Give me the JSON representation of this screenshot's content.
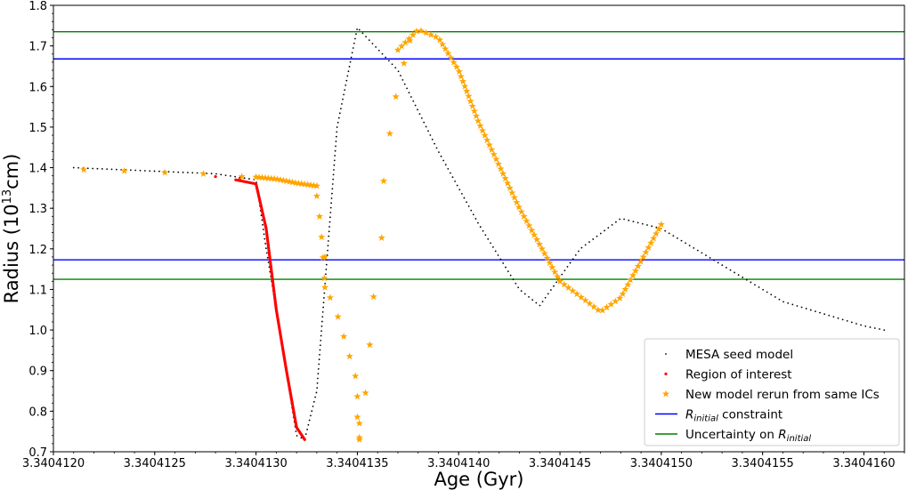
{
  "chart_data": {
    "type": "scatter",
    "xlabel": "Age (Gyr)",
    "ylabel": "Radius (10",
    "ylabel_sup": "13",
    "ylabel_unit": "cm)",
    "xlim": [
      3.340412,
      3.3404162
    ],
    "ylim": [
      0.7,
      1.8
    ],
    "x_ticks": [
      3.340412,
      3.3404125,
      3.340413,
      3.3404135,
      3.340414,
      3.3404145,
      3.340415,
      3.3404155,
      3.340416
    ],
    "x_tick_labels": [
      "3.3404120",
      "3.3404125",
      "3.3404130",
      "3.3404135",
      "3.3404140",
      "3.3404145",
      "3.3404150",
      "3.3404155",
      "3.3404160"
    ],
    "y_ticks": [
      0.7,
      0.8,
      0.9,
      1.0,
      1.1,
      1.2,
      1.3,
      1.4,
      1.5,
      1.6,
      1.7,
      1.8
    ],
    "y_tick_labels": [
      "0.7",
      "0.8",
      "0.9",
      "1.0",
      "1.1",
      "1.2",
      "1.3",
      "1.4",
      "1.5",
      "1.6",
      "1.7",
      "1.8"
    ],
    "series": [
      {
        "name": "MESA seed model",
        "marker": "dot",
        "color": "#000000",
        "curve": [
          [
            3.3404121,
            1.4
          ],
          [
            3.3404128,
            1.385
          ],
          [
            3.340413,
            1.37
          ],
          [
            3.34041305,
            1.2
          ],
          [
            3.3404131,
            1.05
          ],
          [
            3.3404132,
            0.74
          ],
          [
            3.34041324,
            0.73
          ],
          [
            3.3404133,
            0.85
          ],
          [
            3.3404134,
            1.5
          ],
          [
            3.3404135,
            1.745
          ],
          [
            3.3404137,
            1.64
          ],
          [
            3.3404139,
            1.44
          ],
          [
            3.3404141,
            1.26
          ],
          [
            3.3404143,
            1.1
          ],
          [
            3.3404144,
            1.06
          ],
          [
            3.3404146,
            1.2
          ],
          [
            3.3404148,
            1.275
          ],
          [
            3.340415,
            1.25
          ],
          [
            3.3404153,
            1.16
          ],
          [
            3.3404156,
            1.07
          ],
          [
            3.340416,
            1.01
          ],
          [
            3.3404161,
            1.0
          ]
        ],
        "samples": 340
      },
      {
        "name": "Region of interest",
        "marker": "point",
        "color": "#ff0000",
        "isolated": [
          [
            3.3404128,
            1.378
          ],
          [
            3.34041292,
            1.372
          ]
        ],
        "curve": [
          [
            3.3404129,
            1.37
          ],
          [
            3.340413,
            1.36
          ],
          [
            3.34041305,
            1.25
          ],
          [
            3.3404131,
            1.05
          ],
          [
            3.34041315,
            0.9
          ],
          [
            3.3404132,
            0.76
          ],
          [
            3.34041324,
            0.73
          ]
        ],
        "samples": 200
      },
      {
        "name": "New model rerun from same ICs",
        "marker": "star",
        "color": "#ffa500",
        "isolated": [
          [
            3.34041215,
            1.395
          ],
          [
            3.34041235,
            1.392
          ],
          [
            3.34041255,
            1.388
          ],
          [
            3.34041274,
            1.385
          ],
          [
            3.34041293,
            1.378
          ],
          [
            3.34041334,
            1.105
          ],
          [
            3.34041334,
            1.18
          ],
          [
            3.34041351,
            0.73
          ],
          [
            3.34041351,
            0.77
          ],
          [
            3.34041362,
            1.227
          ],
          [
            3.34041363,
            1.367
          ],
          [
            3.34041366,
            1.484
          ],
          [
            3.34041369,
            1.575
          ],
          [
            3.34041373,
            1.657
          ],
          [
            3.34041376,
            1.713
          ]
        ],
        "curve_groups": [
          {
            "curve": [
              [
                3.340413,
                1.377
              ],
              [
                3.3404131,
                1.372
              ],
              [
                3.3404132,
                1.362
              ],
              [
                3.3404133,
                1.355
              ]
            ],
            "samples": 21
          },
          {
            "curve": [
              [
                3.3404133,
                1.33
              ],
              [
                3.34041332,
                1.255
              ],
              [
                3.34041334,
                1.11
              ],
              [
                3.3404134,
                1.04
              ],
              [
                3.3404135,
                0.87
              ],
              [
                3.3404135,
                0.775
              ],
              [
                3.34041351,
                0.735
              ]
            ],
            "samples": 13
          },
          {
            "curve": [
              [
                3.34041354,
                0.845
              ],
              [
                3.34041356,
                0.955
              ],
              [
                3.34041358,
                1.082
              ]
            ],
            "samples": 3
          },
          {
            "curve": [
              [
                3.3404137,
                1.69
              ],
              [
                3.3404138,
                1.74
              ],
              [
                3.3404139,
                1.72
              ],
              [
                3.340414,
                1.64
              ],
              [
                3.3404141,
                1.51
              ],
              [
                3.3404143,
                1.3
              ],
              [
                3.3404145,
                1.12
              ],
              [
                3.3404147,
                1.045
              ],
              [
                3.3404148,
                1.08
              ],
              [
                3.3404149,
                1.17
              ],
              [
                3.340415,
                1.26
              ]
            ],
            "samples": 92
          }
        ]
      }
    ],
    "reference_lines": [
      {
        "name": "R_initial constraint",
        "color": "#0000ff",
        "values": [
          1.668,
          1.173
        ]
      },
      {
        "name": "Uncertainty on R_initial",
        "color": "#008000",
        "values": [
          1.735,
          1.125
        ]
      }
    ],
    "legend": {
      "position": "lower-right",
      "items": [
        {
          "label": "MESA seed model",
          "marker": "dot",
          "color": "#000000"
        },
        {
          "label": "Region of interest",
          "marker": "point",
          "color": "#ff0000"
        },
        {
          "label": "New model rerun from same ICs",
          "marker": "star",
          "color": "#ffa500"
        },
        {
          "label": "R",
          "label_sub": "initial",
          "label_after": " constraint",
          "marker": "line",
          "color": "#0000ff"
        },
        {
          "label": "Uncertainty on R",
          "label_sub": "initial",
          "label_after": "",
          "marker": "line",
          "color": "#008000"
        }
      ]
    }
  }
}
